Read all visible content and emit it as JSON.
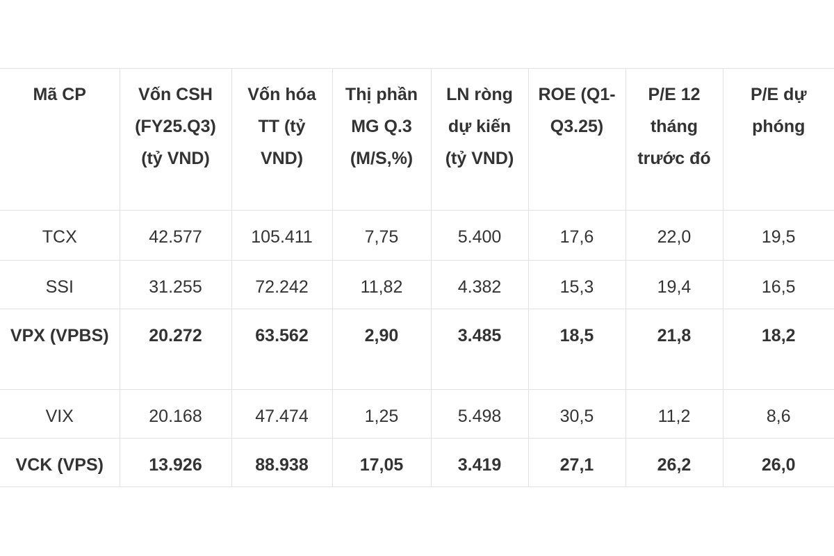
{
  "table": {
    "header": [
      "Mã CP",
      "Vốn CSH (FY25.Q3) (tỷ VND)",
      "Vốn hóa TT (tỷ VND)",
      "Thị phần MG Q.3 (M/S,%)",
      "LN ròng dự kiến (tỷ VND)",
      "ROE (Q1-Q3.25)",
      "P/E 12 tháng trước đó",
      "P/E dự phóng"
    ],
    "rows": [
      {
        "cells": [
          "TCX",
          "42.577",
          "105.411",
          "7,75",
          "5.400",
          "17,6",
          "22,0",
          "19,5"
        ],
        "bold": false
      },
      {
        "cells": [
          "SSI",
          "31.255",
          "72.242",
          "11,82",
          "4.382",
          "15,3",
          "19,4",
          "16,5"
        ],
        "bold": false
      },
      {
        "cells": [
          "VPX (VPBS)",
          "20.272",
          "63.562",
          "2,90",
          "3.485",
          "18,5",
          "21,8",
          "18,2"
        ],
        "bold": true
      },
      {
        "cells": [
          "VIX",
          "20.168",
          "47.474",
          "1,25",
          "5.498",
          "30,5",
          "11,2",
          "8,6"
        ],
        "bold": false
      },
      {
        "cells": [
          "VCK (VPS)",
          "13.926",
          "88.938",
          "17,05",
          "3.419",
          "27,1",
          "26,2",
          "26,0"
        ],
        "bold": true
      }
    ]
  }
}
